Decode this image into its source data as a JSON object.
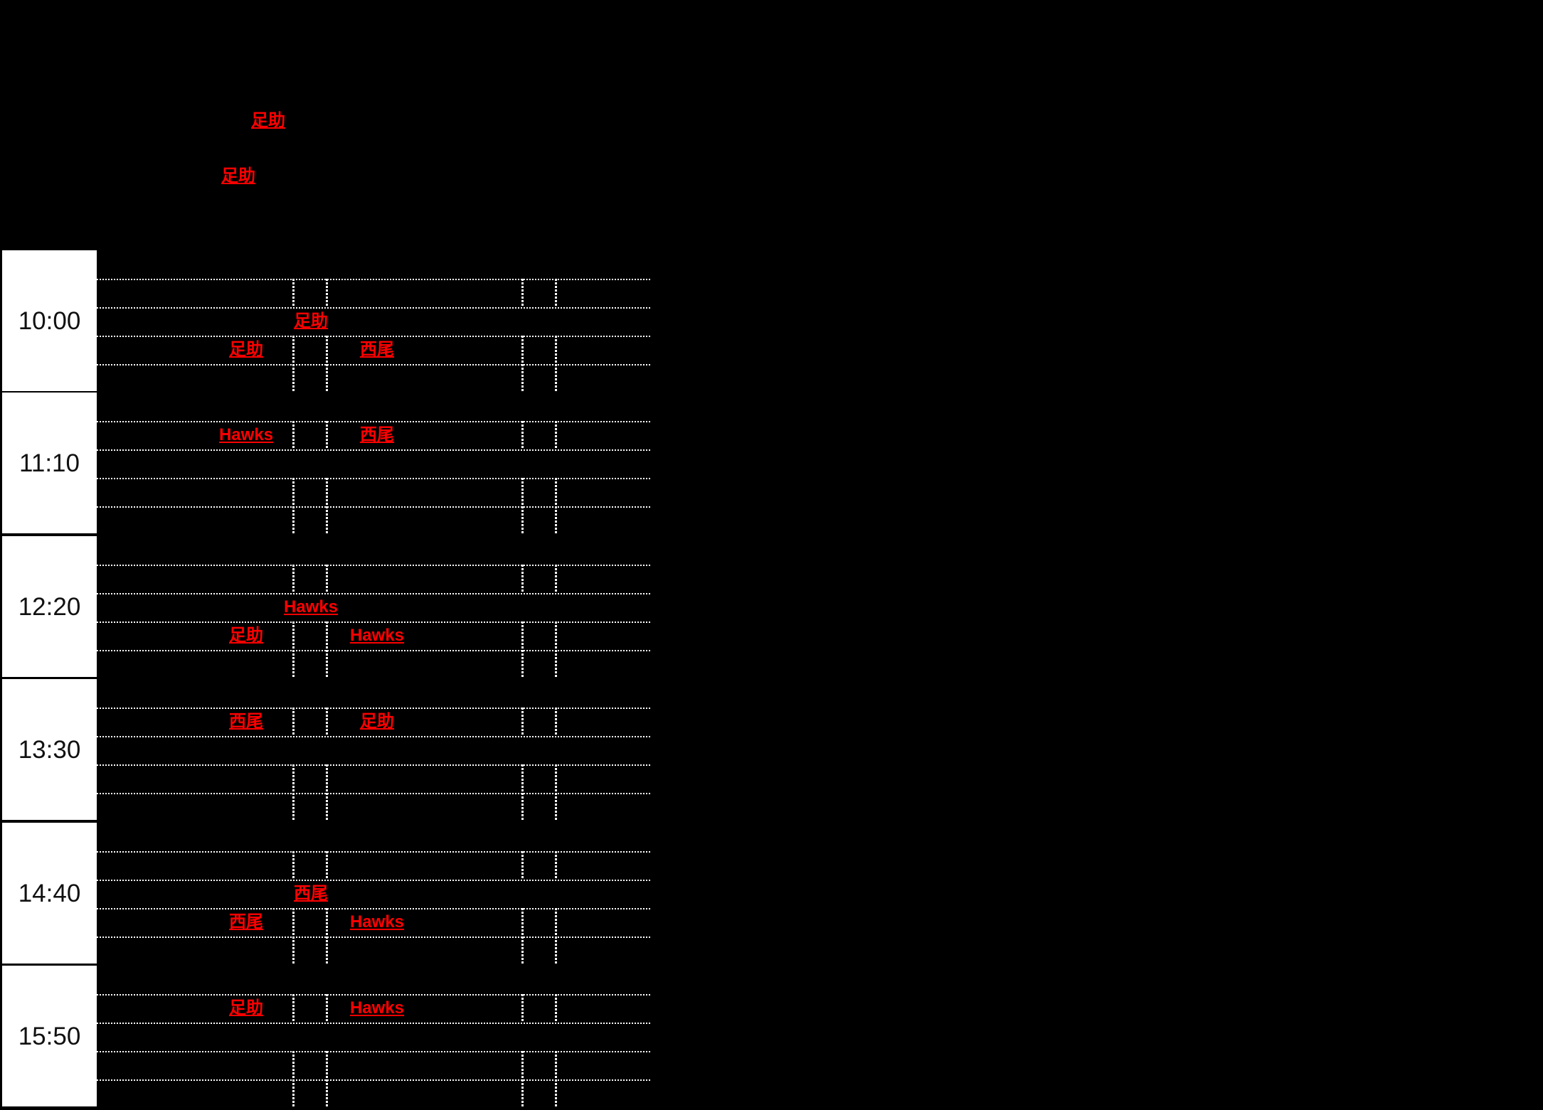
{
  "colors": {
    "background": "#000000",
    "grid_line": "#ffffff",
    "link_red": "#ff0000",
    "time_cell_background": "#ffffff",
    "time_text": "#111111"
  },
  "floating_labels": [
    {
      "text": "足助"
    },
    {
      "text": "足助"
    }
  ],
  "schedule": {
    "blocks": [
      {
        "time": "10:00",
        "labels": [
          {
            "row": "C",
            "col": "center",
            "text": "足助"
          },
          {
            "row": "D",
            "col": "left",
            "text": "足助"
          },
          {
            "row": "D",
            "col": "right",
            "text": "西尾"
          }
        ]
      },
      {
        "time": "11:10",
        "labels": [
          {
            "row": "B",
            "col": "left",
            "text": "Hawks"
          },
          {
            "row": "B",
            "col": "right",
            "text": "西尾"
          }
        ]
      },
      {
        "time": "12:20",
        "labels": [
          {
            "row": "C",
            "col": "center",
            "text": "Hawks"
          },
          {
            "row": "D",
            "col": "left",
            "text": "足助"
          },
          {
            "row": "D",
            "col": "right",
            "text": "Hawks"
          }
        ]
      },
      {
        "time": "13:30",
        "labels": [
          {
            "row": "B",
            "col": "left",
            "text": "西尾"
          },
          {
            "row": "B",
            "col": "right",
            "text": "足助"
          }
        ]
      },
      {
        "time": "14:40",
        "labels": [
          {
            "row": "C",
            "col": "center",
            "text": "西尾"
          },
          {
            "row": "D",
            "col": "left",
            "text": "西尾"
          },
          {
            "row": "D",
            "col": "right",
            "text": "Hawks"
          }
        ]
      },
      {
        "time": "15:50",
        "labels": [
          {
            "row": "B",
            "col": "left",
            "text": "足助"
          },
          {
            "row": "B",
            "col": "right",
            "text": "Hawks"
          }
        ]
      }
    ]
  }
}
